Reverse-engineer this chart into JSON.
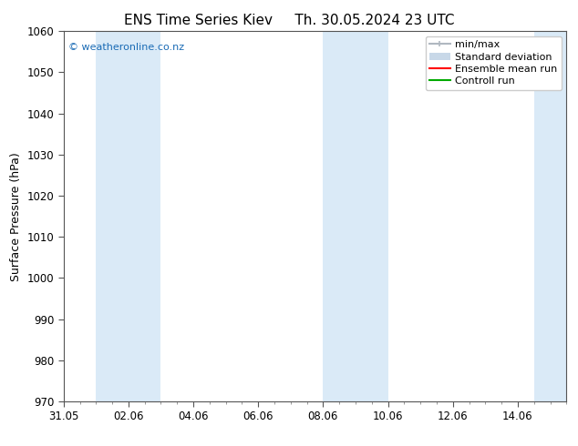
{
  "title_left": "ENS Time Series Kiev",
  "title_right": "Th. 30.05.2024 23 UTC",
  "ylabel": "Surface Pressure (hPa)",
  "ylim": [
    970,
    1060
  ],
  "yticks": [
    970,
    980,
    990,
    1000,
    1010,
    1020,
    1030,
    1040,
    1050,
    1060
  ],
  "xtick_labels": [
    "31.05",
    "02.06",
    "04.06",
    "06.06",
    "08.06",
    "10.06",
    "12.06",
    "14.06"
  ],
  "xtick_positions": [
    0,
    2,
    4,
    6,
    8,
    10,
    12,
    14
  ],
  "xlim": [
    0,
    15.5
  ],
  "watermark": "© weatheronline.co.nz",
  "watermark_color": "#1a6bb5",
  "bg_color": "#ffffff",
  "plot_bg_color": "#ffffff",
  "shaded_bands": [
    {
      "x_start": 1.0,
      "x_end": 3.0,
      "color": "#daeaf7"
    },
    {
      "x_start": 8.0,
      "x_end": 10.0,
      "color": "#daeaf7"
    },
    {
      "x_start": 14.5,
      "x_end": 15.5,
      "color": "#daeaf7"
    }
  ],
  "legend_entries": [
    {
      "label": "min/max",
      "color": "#b0b8c0",
      "lw": 1.5,
      "style": "minmax"
    },
    {
      "label": "Standard deviation",
      "color": "#c8d8e8",
      "lw": 8,
      "style": "stddev"
    },
    {
      "label": "Ensemble mean run",
      "color": "#ff0000",
      "lw": 1.5,
      "style": "line"
    },
    {
      "label": "Controll run",
      "color": "#00aa00",
      "lw": 1.5,
      "style": "line"
    }
  ],
  "title_fontsize": 11,
  "axis_label_fontsize": 9,
  "tick_fontsize": 8.5,
  "legend_fontsize": 8
}
